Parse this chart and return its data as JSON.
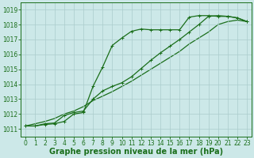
{
  "background_color": "#cce8e8",
  "grid_color": "#aacccc",
  "line_color": "#1a6e1a",
  "xlabel": "Graphe pression niveau de la mer (hPa)",
  "xlim": [
    -0.5,
    23.5
  ],
  "ylim_min": 1010.5,
  "ylim_max": 1019.5,
  "yticks": [
    1011,
    1012,
    1013,
    1014,
    1015,
    1016,
    1017,
    1018,
    1019
  ],
  "xticks": [
    0,
    1,
    2,
    3,
    4,
    5,
    6,
    7,
    8,
    9,
    10,
    11,
    12,
    13,
    14,
    15,
    16,
    17,
    18,
    19,
    20,
    21,
    22,
    23
  ],
  "line1_x": [
    0,
    1,
    2,
    3,
    4,
    5,
    6,
    7,
    8,
    9,
    10,
    11,
    12,
    13,
    14,
    15,
    16,
    17,
    18,
    19,
    20,
    21,
    22,
    23
  ],
  "line1_y": [
    1011.2,
    1011.2,
    1011.3,
    1011.35,
    1011.5,
    1012.0,
    1012.1,
    1013.85,
    1015.15,
    1016.6,
    1017.1,
    1017.55,
    1017.7,
    1017.65,
    1017.65,
    1017.65,
    1017.65,
    1018.5,
    1018.6,
    1018.6,
    1018.55,
    1018.55,
    1018.45,
    1018.2
  ],
  "line2_x": [
    0,
    1,
    2,
    3,
    4,
    5,
    6,
    7,
    8,
    9,
    10,
    11,
    12,
    13,
    14,
    15,
    16,
    17,
    18,
    19,
    20,
    21,
    22,
    23
  ],
  "line2_y": [
    1011.2,
    1011.2,
    1011.35,
    1011.4,
    1011.9,
    1012.1,
    1012.2,
    1013.0,
    1013.55,
    1013.85,
    1014.1,
    1014.5,
    1015.05,
    1015.6,
    1016.1,
    1016.55,
    1017.0,
    1017.5,
    1018.0,
    1018.55,
    1018.6,
    1018.55,
    1018.45,
    1018.2
  ],
  "line3_x": [
    0,
    1,
    2,
    3,
    4,
    5,
    6,
    7,
    8,
    9,
    10,
    11,
    12,
    13,
    14,
    15,
    16,
    17,
    18,
    19,
    20,
    21,
    22,
    23
  ],
  "line3_y": [
    1011.2,
    1011.35,
    1011.5,
    1011.7,
    1012.0,
    1012.2,
    1012.5,
    1012.9,
    1013.2,
    1013.5,
    1013.85,
    1014.2,
    1014.6,
    1015.0,
    1015.4,
    1015.8,
    1016.2,
    1016.7,
    1017.1,
    1017.5,
    1018.0,
    1018.2,
    1018.3,
    1018.2
  ],
  "xlabel_fontsize": 7,
  "tick_fontsize": 5.5,
  "lw": 0.9,
  "ms": 2.8
}
